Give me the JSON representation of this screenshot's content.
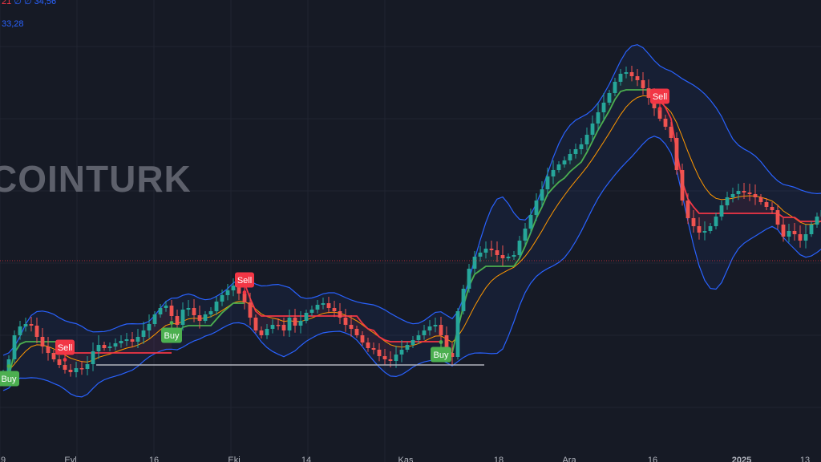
{
  "header": {
    "ohlc_fragment": "21",
    "ind_values": [
      "∅",
      "∅",
      "34,56"
    ],
    "ind2_value": "33,28"
  },
  "watermark": "COINTURK",
  "colors": {
    "background": "#161a25",
    "up": "#26a69a",
    "down": "#ef5350",
    "bb_band": "#2962ff",
    "basis": "#ff9800",
    "supertrend_up": "#4caf50",
    "supertrend_down": "#f23645",
    "buy_label": "#4caf50",
    "sell_label": "#f23645"
  },
  "chart_data": {
    "type": "candlestick",
    "title": "",
    "indicators": [
      "Bollinger Bands",
      "Supertrend (Buy/Sell signals)"
    ],
    "x_tick_labels": [
      "9",
      "Eyl",
      "16",
      "Eki",
      "14",
      "Kas",
      "18",
      "Ara",
      "16",
      "2025",
      "13"
    ],
    "y_axis": "not shown",
    "signals": [
      {
        "label": "Buy",
        "type": "buy",
        "index": 1
      },
      {
        "label": "Sell",
        "type": "sell",
        "index": 11
      },
      {
        "label": "Buy",
        "type": "buy",
        "index": 30
      },
      {
        "label": "Sell",
        "type": "sell",
        "index": 43
      },
      {
        "label": "Buy",
        "type": "buy",
        "index": 78
      },
      {
        "label": "Sell",
        "type": "sell",
        "index": 117
      }
    ],
    "closes": [
      465,
      448,
      418,
      407,
      404,
      406,
      420,
      432,
      440,
      448,
      455,
      461,
      464,
      459,
      460,
      454,
      438,
      430,
      434,
      432,
      428,
      425,
      423,
      426,
      420,
      412,
      404,
      392,
      384,
      381,
      394,
      405,
      386,
      384,
      393,
      400,
      392,
      388,
      376,
      368,
      362,
      356,
      366,
      377,
      396,
      412,
      418,
      410,
      405,
      405,
      412,
      396,
      406,
      400,
      390,
      386,
      380,
      378,
      384,
      388,
      396,
      405,
      410,
      418,
      427,
      434,
      436,
      444,
      448,
      450,
      442,
      436,
      430,
      424,
      418,
      412,
      407,
      405,
      418,
      440,
      445,
      388,
      360,
      335,
      320,
      315,
      310,
      312,
      318,
      322,
      320,
      318,
      300,
      285,
      268,
      250,
      236,
      220,
      212,
      205,
      200,
      192,
      186,
      180,
      168,
      154,
      140,
      128,
      116,
      102,
      92,
      90,
      95,
      100,
      110,
      122,
      135,
      148,
      158,
      172,
      212,
      250,
      272,
      282,
      290,
      288,
      282,
      270,
      256,
      246,
      242,
      238,
      240,
      242,
      246,
      252,
      258,
      262,
      280,
      295,
      288,
      292,
      300,
      292,
      280,
      270,
      262
    ]
  }
}
